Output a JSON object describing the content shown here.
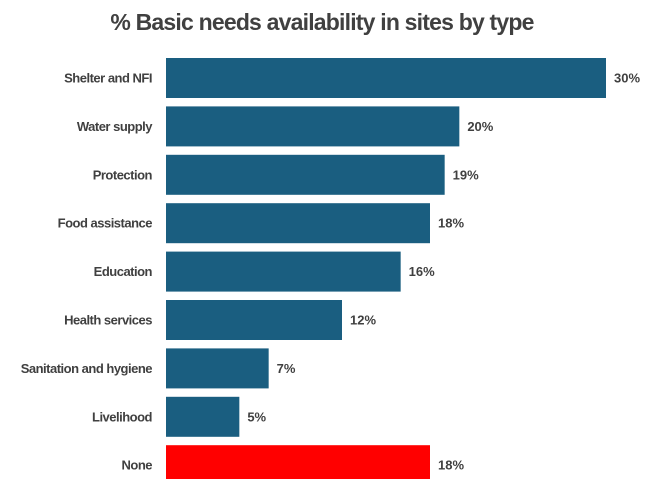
{
  "chart_data": {
    "type": "bar",
    "orientation": "horizontal",
    "title": "% Basic needs availability in sites by type",
    "categories": [
      "Shelter and NFI",
      "Water supply",
      "Protection",
      "Food assistance",
      "Education",
      "Health services",
      "Sanitation and hygiene",
      "Livelihood",
      "None"
    ],
    "values": [
      30,
      20,
      19,
      18,
      16,
      12,
      7,
      5,
      18
    ],
    "value_labels": [
      "30%",
      "20%",
      "19%",
      "18%",
      "16%",
      "12%",
      "7%",
      "5%",
      "18%"
    ],
    "colors": [
      "#1a5e80",
      "#1a5e80",
      "#1a5e80",
      "#1a5e80",
      "#1a5e80",
      "#1a5e80",
      "#1a5e80",
      "#1a5e80",
      "#ff0000"
    ],
    "xlim": [
      0,
      30
    ],
    "grid": false,
    "legend": "none"
  }
}
